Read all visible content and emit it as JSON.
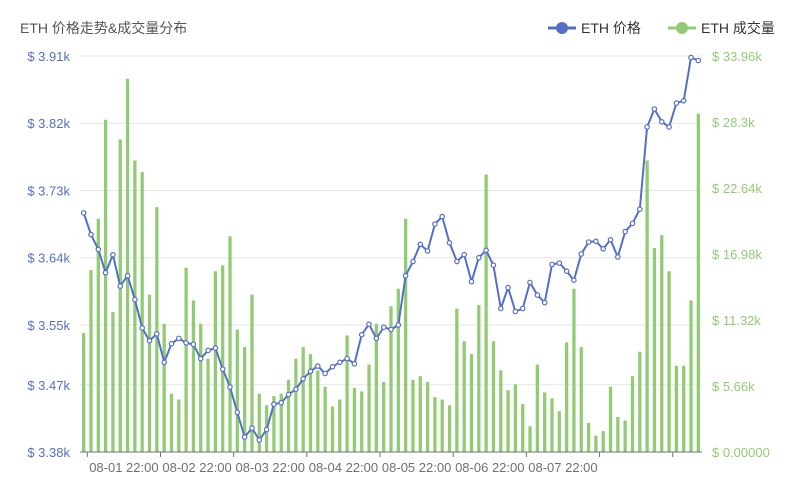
{
  "chart_data": {
    "type": "bar+line",
    "title": "ETH 价格走势&成交量分布",
    "legend": {
      "placement": "top-right",
      "items": [
        {
          "name": "ETH 价格",
          "color": "#5470c6",
          "series": "price"
        },
        {
          "name": "ETH 成交量",
          "color": "#91cc75",
          "series": "volume"
        }
      ]
    },
    "x_ticks": [
      "08-01 22:00",
      "08-02 22:00",
      "08-03 22:00",
      "08-04 22:00",
      "08-05 22:00",
      "08-06 22:00",
      "08-07 22:00"
    ],
    "y_left": {
      "min": 3380,
      "max": 3910,
      "ticks": [
        3380,
        3470,
        3550,
        3640,
        3730,
        3820,
        3910
      ],
      "tick_labels": [
        "$ 3.38k",
        "$ 3.47k",
        "$ 3.55k",
        "$ 3.64k",
        "$ 3.73k",
        "$ 3.82k",
        "$ 3.91k"
      ]
    },
    "y_right": {
      "min": 0,
      "max": 33960,
      "ticks": [
        0,
        5660,
        11320,
        16980,
        22640,
        28300,
        33960
      ],
      "tick_labels": [
        "$ 0.00000",
        "$ 5.66k",
        "$ 11.32k",
        "$ 16.98k",
        "$ 22.64k",
        "$ 28.3k",
        "$ 33.96k"
      ]
    },
    "grid": true,
    "series": [
      {
        "name": "ETH 价格",
        "type": "line",
        "axis": "left",
        "values": [
          3700,
          3671,
          3651,
          3620,
          3644,
          3602,
          3616,
          3584,
          3546,
          3529,
          3538,
          3500,
          3525,
          3532,
          3526,
          3524,
          3505,
          3516,
          3519,
          3491,
          3467,
          3433,
          3400,
          3412,
          3396,
          3410,
          3444,
          3446,
          3457,
          3464,
          3478,
          3488,
          3495,
          3485,
          3494,
          3500,
          3505,
          3498,
          3537,
          3551,
          3532,
          3547,
          3544,
          3550,
          3616,
          3635,
          3658,
          3649,
          3685,
          3695,
          3660,
          3635,
          3644,
          3608,
          3640,
          3650,
          3630,
          3572,
          3600,
          3568,
          3572,
          3607,
          3590,
          3580,
          3631,
          3633,
          3622,
          3610,
          3645,
          3661,
          3662,
          3652,
          3664,
          3641,
          3675,
          3686,
          3705,
          3815,
          3839,
          3822,
          3815,
          3847,
          3850,
          3908,
          3904
        ]
      },
      {
        "name": "ETH 成交量",
        "type": "bar",
        "axis": "right",
        "values": [
          10200,
          15600,
          20000,
          28500,
          12000,
          26800,
          32000,
          25000,
          24000,
          13500,
          21000,
          11000,
          5000,
          4500,
          15800,
          13000,
          11000,
          8000,
          15500,
          16000,
          18500,
          10500,
          9000,
          13500,
          5000,
          4000,
          4800,
          5000,
          6200,
          8000,
          9000,
          8400,
          7000,
          5600,
          3900,
          4500,
          10000,
          5500,
          5200,
          7500,
          11000,
          6000,
          12500,
          14000,
          20000,
          6200,
          6500,
          6000,
          4700,
          4500,
          4000,
          12300,
          9500,
          8400,
          12600,
          23800,
          9500,
          7000,
          5300,
          5800,
          4100,
          2200,
          7500,
          5100,
          4600,
          3500,
          9400,
          14000,
          9000,
          2500,
          1400,
          1800,
          5600,
          3000,
          2700,
          6500,
          8600,
          25000,
          17500,
          18600,
          15500,
          7400,
          7400,
          13000,
          29000
        ]
      }
    ]
  }
}
